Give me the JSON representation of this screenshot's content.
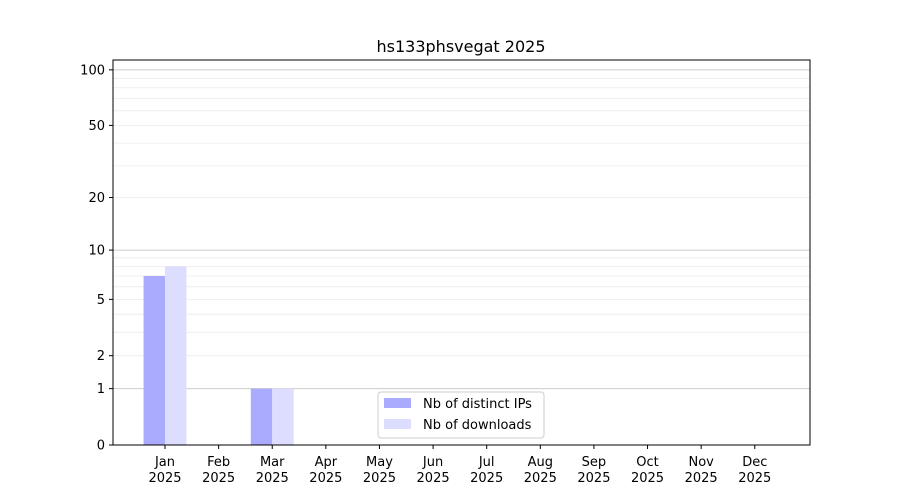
{
  "chart_data": {
    "type": "bar",
    "title": "hs133phsvegat 2025",
    "xlabel": "",
    "ylabel": "",
    "yscale": "log10(1+y)",
    "ylim": [
      0,
      113
    ],
    "y_ticks": [
      0,
      1,
      2,
      5,
      10,
      20,
      50,
      100
    ],
    "grid": "horizontal, major and minor",
    "categories": [
      "Jan\n2025",
      "Feb\n2025",
      "Mar\n2025",
      "Apr\n2025",
      "May\n2025",
      "Jun\n2025",
      "Jul\n2025",
      "Aug\n2025",
      "Sep\n2025",
      "Oct\n2025",
      "Nov\n2025",
      "Dec\n2025"
    ],
    "series": [
      {
        "name": "Nb of distinct IPs",
        "color": "#aaaaff",
        "values": [
          7,
          0,
          1,
          0,
          0,
          0,
          0,
          0,
          0,
          0,
          0,
          0
        ]
      },
      {
        "name": "Nb of downloads",
        "color": "#ddddff",
        "values": [
          8,
          0,
          1,
          0,
          0,
          0,
          0,
          0,
          0,
          0,
          0,
          0
        ]
      }
    ],
    "legend": "lower-center"
  }
}
